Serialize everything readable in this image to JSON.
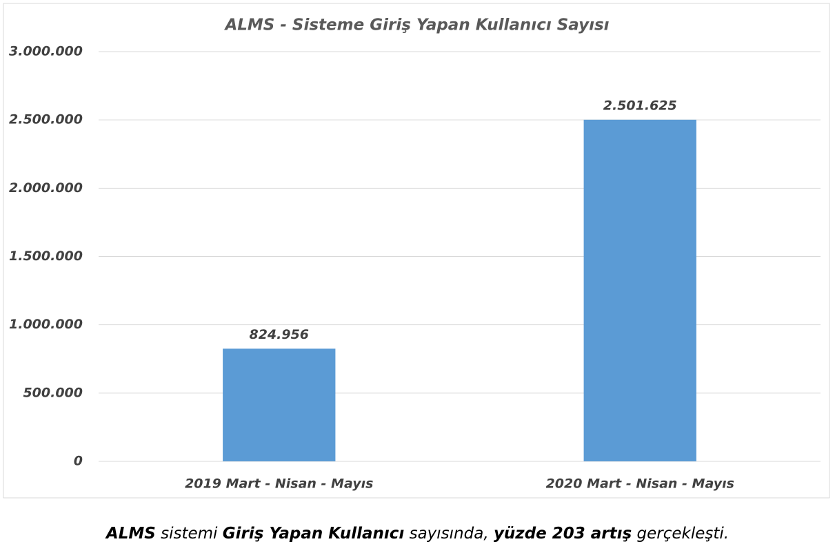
{
  "chart_data": {
    "type": "bar",
    "title": "ALMS - Sisteme Giriş Yapan Kullanıcı Sayısı",
    "categories": [
      "2019 Mart - Nisan - Mayıs",
      "2020 Mart - Nisan - Mayıs"
    ],
    "values": [
      824956,
      2501625
    ],
    "value_labels": [
      "824.956",
      "2.501.625"
    ],
    "color": "#5b9bd5",
    "ylim": [
      0,
      3000000
    ],
    "yticks": [
      0,
      {
        "value": 500000,
        "label": "500.000"
      },
      {
        "value": 1000000,
        "label": "1.000.000"
      },
      {
        "value": 1500000,
        "label": "1.500.000"
      },
      {
        "value": 2000000,
        "label": "2.000.000"
      },
      {
        "value": 2500000,
        "label": "2.500.000"
      },
      {
        "value": 3000000,
        "label": "3.000.000"
      }
    ],
    "grid": true
  },
  "caption": [
    {
      "text": "ALMS",
      "bold": true
    },
    {
      "text": " sistemi ",
      "bold": false
    },
    {
      "text": "Giriş Yapan Kullanıcı",
      "bold": true
    },
    {
      "text": " sayısında, ",
      "bold": false
    },
    {
      "text": "yüzde 203 artış",
      "bold": true
    },
    {
      "text": " gerçekleşti.",
      "bold": false
    }
  ]
}
